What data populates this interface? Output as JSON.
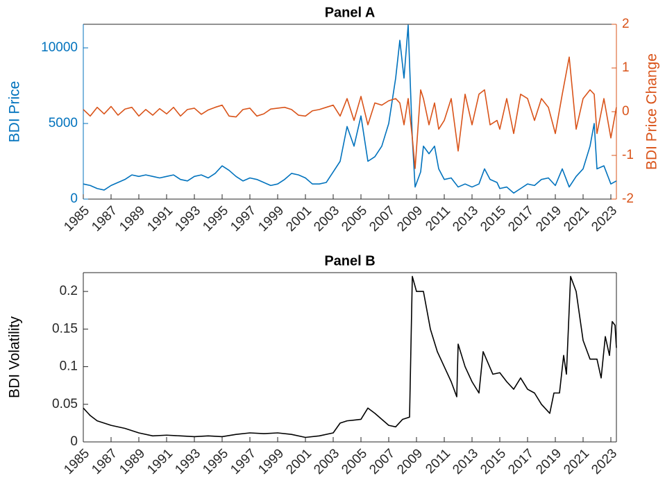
{
  "chart_data": [
    {
      "type": "line",
      "title": "Panel A",
      "ylabel": "BDI Price",
      "y2label": "BDI Price Change",
      "x": [
        1985,
        1985.5,
        1986,
        1986.5,
        1987,
        1987.5,
        1988,
        1988.5,
        1989,
        1989.5,
        1990,
        1990.5,
        1991,
        1991.5,
        1992,
        1992.5,
        1993,
        1993.5,
        1994,
        1994.5,
        1995,
        1995.5,
        1996,
        1996.5,
        1997,
        1997.5,
        1998,
        1998.5,
        1999,
        1999.5,
        2000,
        2000.5,
        2001,
        2001.5,
        2002,
        2002.5,
        2003,
        2003.5,
        2004,
        2004.5,
        2005,
        2005.5,
        2006,
        2006.5,
        2007,
        2007.5,
        2007.8,
        2008.1,
        2008.4,
        2008.7,
        2008.9,
        2009.3,
        2009.5,
        2009.9,
        2010.3,
        2010.6,
        2011,
        2011.5,
        2012,
        2012.5,
        2013,
        2013.5,
        2013.9,
        2014.3,
        2014.8,
        2015,
        2015.5,
        2016,
        2016.5,
        2017,
        2017.5,
        2018,
        2018.5,
        2019,
        2019.5,
        2020,
        2020.5,
        2021,
        2021.5,
        2021.8,
        2022,
        2022.5,
        2023,
        2023.4
      ],
      "series": [
        {
          "color": "#0072bd",
          "values": [
            1000,
            900,
            700,
            600,
            900,
            1100,
            1300,
            1600,
            1500,
            1600,
            1500,
            1400,
            1500,
            1600,
            1300,
            1200,
            1500,
            1600,
            1400,
            1700,
            2200,
            1900,
            1500,
            1200,
            1400,
            1300,
            1100,
            900,
            1000,
            1300,
            1700,
            1600,
            1400,
            1000,
            1000,
            1100,
            1800,
            2500,
            4800,
            3500,
            5500,
            2500,
            2800,
            3500,
            5000,
            8000,
            10500,
            8000,
            11500,
            4000,
            800,
            1800,
            3500,
            3000,
            3500,
            2000,
            1300,
            1400,
            800,
            1000,
            800,
            1000,
            2000,
            1300,
            1100,
            700,
            800,
            400,
            700,
            1000,
            900,
            1300,
            1400,
            900,
            2000,
            800,
            1500,
            2000,
            3500,
            5000,
            2000,
            2200,
            1000,
            1200
          ]
        },
        {
          "color": "#d95319",
          "axis": "y2",
          "values": [
            0.05,
            -0.1,
            0.1,
            -0.05,
            0.12,
            -0.08,
            0.06,
            0.1,
            -0.1,
            0.05,
            -0.08,
            0.07,
            -0.05,
            0.1,
            -0.1,
            0.05,
            0.08,
            -0.06,
            0.04,
            0.1,
            0.15,
            -0.1,
            -0.12,
            0.05,
            0.08,
            -0.1,
            -0.05,
            0.06,
            0.08,
            0.1,
            0.05,
            -0.08,
            -0.1,
            0.02,
            0.05,
            0.1,
            0.15,
            -0.1,
            0.3,
            -0.2,
            0.35,
            -0.3,
            0.2,
            0.15,
            0.25,
            0.3,
            0.2,
            -0.3,
            0.3,
            -0.6,
            -1.3,
            0.5,
            0.3,
            -0.3,
            0.2,
            -0.4,
            -0.2,
            0.3,
            -0.9,
            0.4,
            -0.3,
            0.4,
            0.5,
            -0.3,
            -0.2,
            -0.4,
            0.3,
            -0.5,
            0.4,
            0.3,
            -0.2,
            0.3,
            0.1,
            -0.5,
            0.4,
            1.25,
            -0.4,
            0.3,
            0.5,
            0.4,
            -0.5,
            0.3,
            -0.6,
            0.1
          ]
        }
      ],
      "xlim": [
        1985,
        2023.4
      ],
      "xticks": [
        1985,
        1987,
        1989,
        1991,
        1993,
        1995,
        1997,
        1999,
        2001,
        2003,
        2005,
        2007,
        2009,
        2011,
        2013,
        2015,
        2017,
        2019,
        2021,
        2023
      ],
      "ylim": [
        0,
        11560
      ],
      "yticks": [
        0,
        5000,
        10000
      ],
      "y2lim": [
        -2,
        2
      ],
      "y2ticks": [
        -2,
        -1,
        0,
        1,
        2
      ]
    },
    {
      "type": "line",
      "title": "Panel B",
      "ylabel": "BDI Volatility",
      "x": [
        1985,
        1985.5,
        1986,
        1987,
        1988,
        1989,
        1990,
        1991,
        1992,
        1993,
        1994,
        1995,
        1996,
        1997,
        1998,
        1999,
        2000,
        2001,
        2002,
        2003,
        2003.5,
        2004,
        2005,
        2005.5,
        2006,
        2007,
        2007.5,
        2008,
        2008.5,
        2008.7,
        2009,
        2009.5,
        2010,
        2010.5,
        2011,
        2011.5,
        2011.9,
        2012,
        2012.5,
        2013,
        2013.5,
        2013.8,
        2014.5,
        2015,
        2015.5,
        2016,
        2016.5,
        2017,
        2017.5,
        2018,
        2018.6,
        2018.9,
        2019.3,
        2019.6,
        2019.8,
        2020.1,
        2020.5,
        2021,
        2021.5,
        2022,
        2022.3,
        2022.6,
        2022.9,
        2023.1,
        2023.3,
        2023.4
      ],
      "series": [
        {
          "color": "#000000",
          "values": [
            0.045,
            0.035,
            0.028,
            0.022,
            0.018,
            0.012,
            0.008,
            0.009,
            0.008,
            0.007,
            0.008,
            0.007,
            0.01,
            0.012,
            0.011,
            0.012,
            0.01,
            0.006,
            0.008,
            0.012,
            0.025,
            0.028,
            0.03,
            0.045,
            0.038,
            0.022,
            0.02,
            0.03,
            0.033,
            0.22,
            0.2,
            0.2,
            0.15,
            0.12,
            0.1,
            0.08,
            0.06,
            0.13,
            0.1,
            0.08,
            0.065,
            0.12,
            0.09,
            0.092,
            0.08,
            0.07,
            0.085,
            0.07,
            0.065,
            0.05,
            0.038,
            0.065,
            0.065,
            0.115,
            0.09,
            0.22,
            0.2,
            0.135,
            0.11,
            0.11,
            0.085,
            0.14,
            0.115,
            0.16,
            0.155,
            0.125
          ]
        }
      ],
      "xlim": [
        1985,
        2023.4
      ],
      "xticks": [
        1985,
        1987,
        1989,
        1991,
        1993,
        1995,
        1997,
        1999,
        2001,
        2003,
        2005,
        2007,
        2009,
        2011,
        2013,
        2015,
        2017,
        2019,
        2021,
        2023
      ],
      "ylim": [
        0,
        0.225
      ],
      "yticks": [
        0,
        0.05,
        0.1,
        0.15,
        0.2
      ]
    }
  ]
}
